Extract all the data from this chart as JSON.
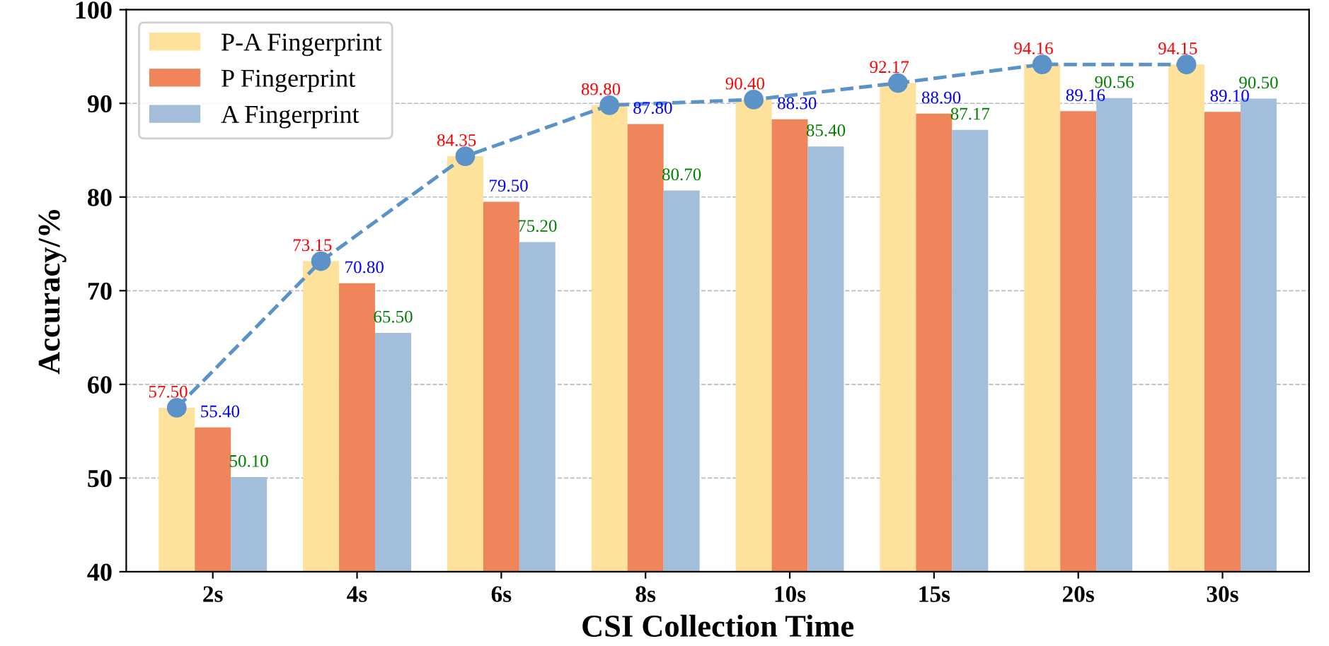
{
  "chart_data": {
    "type": "bar",
    "xlabel": "CSI Collection Time",
    "ylabel": "Accuracy/%",
    "categories": [
      "2s",
      "4s",
      "6s",
      "8s",
      "10s",
      "15s",
      "20s",
      "30s"
    ],
    "series": [
      {
        "name": "P-A Fingerprint",
        "color": "#fee29b",
        "values": [
          57.5,
          73.15,
          84.35,
          89.8,
          90.4,
          92.17,
          94.16,
          94.15
        ],
        "value_labels": [
          "57.50",
          "73.15",
          "84.35",
          "89.80",
          "90.40",
          "92.17",
          "94.16",
          "94.15"
        ]
      },
      {
        "name": "P Fingerprint",
        "color": "#f0845a",
        "values": [
          55.4,
          70.8,
          79.5,
          87.8,
          88.3,
          88.9,
          89.16,
          89.1
        ],
        "value_labels": [
          "55.40",
          "70.80",
          "79.50",
          "87.80",
          "88.30",
          "88.90",
          "89.16",
          "89.10"
        ]
      },
      {
        "name": "A Fingerprint",
        "color": "#a3bedb",
        "values": [
          50.1,
          65.5,
          75.2,
          80.7,
          85.4,
          87.17,
          90.56,
          90.5
        ],
        "value_labels": [
          "50.10",
          "65.50",
          "75.20",
          "80.70",
          "85.40",
          "87.17",
          "90.56",
          "90.50"
        ]
      },
      {
        "type": "line",
        "color": "#5b93c8",
        "values": [
          57.5,
          73.15,
          84.35,
          89.8,
          90.4,
          92.17,
          94.16,
          94.15
        ],
        "line_style": "dashed",
        "marker": "circle"
      }
    ],
    "ylim": [
      40,
      100
    ],
    "yticks": [
      40,
      50,
      60,
      70,
      80,
      90,
      100
    ],
    "grid": "y",
    "legend": "top left"
  }
}
